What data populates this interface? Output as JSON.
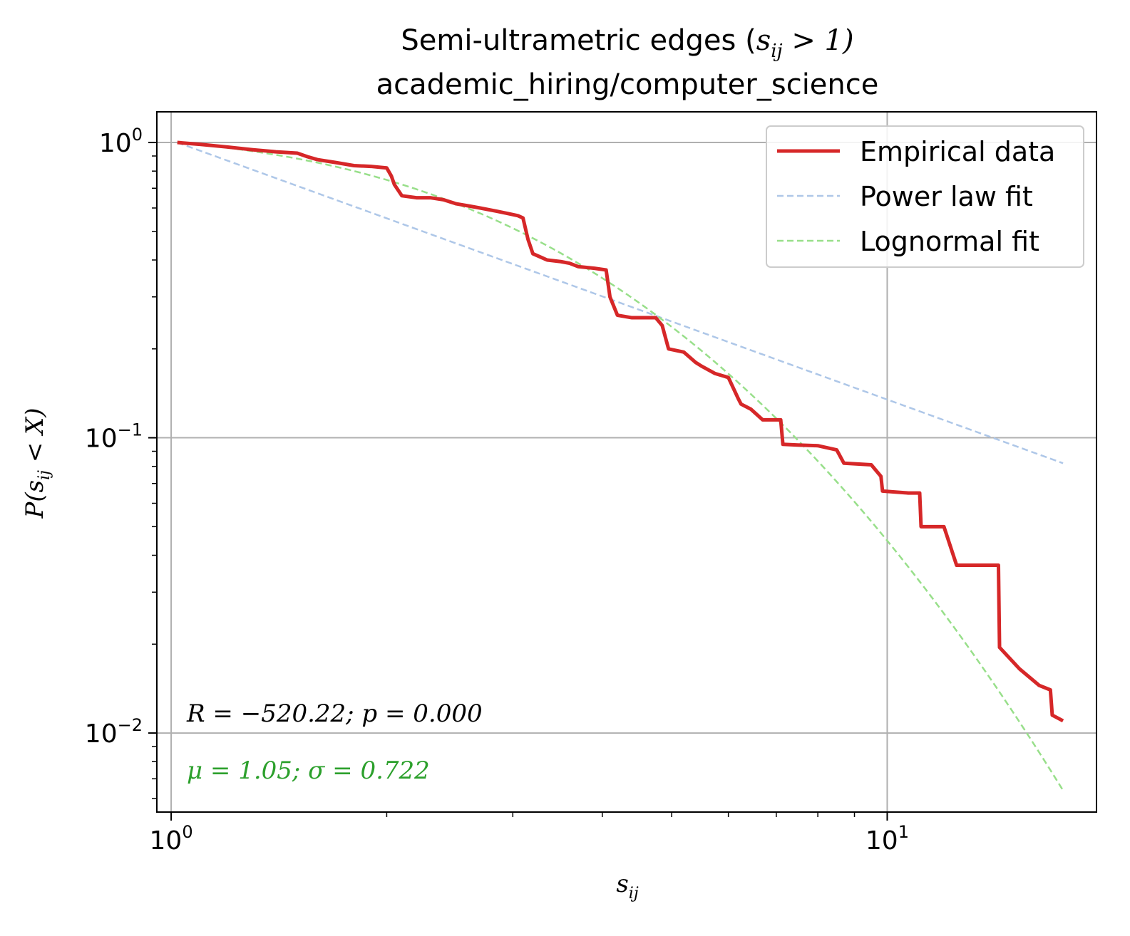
{
  "chart_data": {
    "type": "line",
    "title_line1": "Semi-ultrametric edges (",
    "title_math": "s",
    "title_math_sub": "ij",
    "title_math_rest": " > 1)",
    "title_line2": "academic_hiring/computer_science",
    "xlabel": "s",
    "xlabel_sub": "ij",
    "ylabel": "P(s",
    "ylabel_sub": "ij",
    "ylabel_rest": " < X)",
    "xscale": "log",
    "yscale": "log",
    "xlim": [
      0.955,
      19.6
    ],
    "ylim": [
      0.0054,
      1.27
    ],
    "xticks": [
      {
        "value": 1,
        "base": "10",
        "exp": "0"
      },
      {
        "value": 10,
        "base": "10",
        "exp": "1"
      }
    ],
    "yticks": [
      {
        "value": 1,
        "base": "10",
        "exp": "0"
      },
      {
        "value": 0.1,
        "base": "10",
        "exp": "−1"
      },
      {
        "value": 0.01,
        "base": "10",
        "exp": "−2"
      }
    ],
    "grid": true,
    "legend_position": "top-right",
    "series": [
      {
        "name": "Empirical data",
        "color": "#d62728",
        "style": "solid",
        "x": [
          1.02,
          1.1,
          1.2,
          1.3,
          1.4,
          1.5,
          1.55,
          1.6,
          1.7,
          1.8,
          1.9,
          2.0,
          2.03,
          2.05,
          2.1,
          2.2,
          2.3,
          2.4,
          2.5,
          2.6,
          2.7,
          2.85,
          2.95,
          3.05,
          3.1,
          3.15,
          3.2,
          3.35,
          3.5,
          3.6,
          3.7,
          3.9,
          4.05,
          4.1,
          4.2,
          4.4,
          4.6,
          4.75,
          4.85,
          4.95,
          5.2,
          5.4,
          5.5,
          5.75,
          6.0,
          6.2,
          6.25,
          6.45,
          6.7,
          7.1,
          7.15,
          7.5,
          8.0,
          8.5,
          8.7,
          9.5,
          9.8,
          9.85,
          10.7,
          11.1,
          11.15,
          12.0,
          12.5,
          13.6,
          14.3,
          14.35,
          15.3,
          16.3,
          16.9,
          17.0,
          17.6
        ],
        "y": [
          1.0,
          0.985,
          0.965,
          0.945,
          0.93,
          0.92,
          0.895,
          0.875,
          0.855,
          0.835,
          0.83,
          0.82,
          0.77,
          0.72,
          0.66,
          0.65,
          0.65,
          0.64,
          0.62,
          0.61,
          0.6,
          0.585,
          0.575,
          0.565,
          0.555,
          0.47,
          0.42,
          0.4,
          0.395,
          0.39,
          0.38,
          0.375,
          0.37,
          0.3,
          0.26,
          0.255,
          0.255,
          0.255,
          0.24,
          0.2,
          0.195,
          0.18,
          0.175,
          0.165,
          0.16,
          0.135,
          0.13,
          0.125,
          0.115,
          0.115,
          0.095,
          0.0945,
          0.094,
          0.091,
          0.082,
          0.081,
          0.074,
          0.066,
          0.065,
          0.065,
          0.05,
          0.05,
          0.037,
          0.037,
          0.037,
          0.0195,
          0.0165,
          0.0145,
          0.014,
          0.0115,
          0.011
        ]
      },
      {
        "name": "Power law fit",
        "color": "#aec7e8",
        "style": "dashed",
        "alpha_note": "",
        "x": [
          1.02,
          17.6
        ],
        "y": [
          1.0,
          0.082
        ]
      },
      {
        "name": "Lognormal fit",
        "color": "#98df8a",
        "style": "dashed",
        "mu": 1.05,
        "sigma": 0.722,
        "x_start": 1.02,
        "x_end": 17.6
      }
    ],
    "annotations": [
      {
        "text": "R = −520.22; p = 0.000",
        "color": "#000000"
      },
      {
        "text": "μ = 1.05; σ = 0.722",
        "color": "#2ca02c"
      }
    ]
  }
}
